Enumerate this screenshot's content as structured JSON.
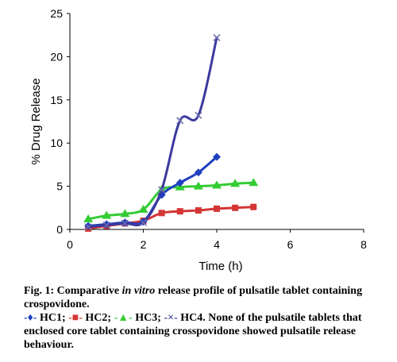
{
  "chart_data": {
    "type": "line",
    "xlabel": "Time (h)",
    "ylabel": "% Drug Release",
    "xlim": [
      0,
      8
    ],
    "ylim": [
      0,
      25
    ],
    "xticks": [
      0,
      2,
      4,
      6,
      8
    ],
    "yticks": [
      0,
      5,
      10,
      15,
      20,
      25
    ],
    "grid": false,
    "legend": "none (caption)",
    "series": [
      {
        "name": "HC1",
        "marker": "diamond",
        "color": "#1f3fbf",
        "x": [
          0.5,
          1,
          1.5,
          2,
          2.5,
          3,
          3.5,
          4
        ],
        "y": [
          0.4,
          0.6,
          0.8,
          0.9,
          4.0,
          5.4,
          6.6,
          8.4
        ]
      },
      {
        "name": "HC2",
        "marker": "square",
        "color": "#d43535",
        "x": [
          0.5,
          1,
          1.5,
          2,
          2.5,
          3,
          3.5,
          4,
          4.5,
          5
        ],
        "y": [
          0.1,
          0.4,
          0.7,
          1.0,
          1.9,
          2.1,
          2.2,
          2.4,
          2.5,
          2.6
        ]
      },
      {
        "name": "HC3",
        "marker": "triangle",
        "color": "#33cc33",
        "x": [
          0.5,
          1,
          1.5,
          2,
          2.5,
          3,
          3.5,
          4,
          4.5,
          5
        ],
        "y": [
          1.2,
          1.6,
          1.8,
          2.3,
          4.6,
          4.9,
          5.0,
          5.1,
          5.3,
          5.4
        ]
      },
      {
        "name": "HC4",
        "marker": "x",
        "color": "#3a3a9e",
        "x": [
          0.5,
          1,
          1.5,
          2,
          2.5,
          3,
          3.5,
          4
        ],
        "y": [
          0.3,
          0.5,
          0.7,
          0.8,
          4.6,
          12.6,
          13.2,
          22.2
        ]
      }
    ]
  },
  "caption": {
    "fig_prefix": "Fig. 1: Comparative ",
    "fig_italic": "in vitro",
    "fig_rest": " release profile of pulsatile tablet containing crospovidone.",
    "legend": [
      {
        "sym": "-♦-",
        "label": " HC1; ",
        "color": "#1f3fbf"
      },
      {
        "sym": "-■-",
        "label": " HC2; ",
        "color": "#d43535"
      },
      {
        "sym": "-▲-",
        "label": " HC3; ",
        "color": "#33cc33"
      },
      {
        "sym": "-×-",
        "label": " HC4.",
        "color": "#3a3a9e"
      }
    ],
    "note": " None of the pulsatile tablets that enclosed core tablet containing crosspovidone showed pulsatile release behaviour."
  }
}
